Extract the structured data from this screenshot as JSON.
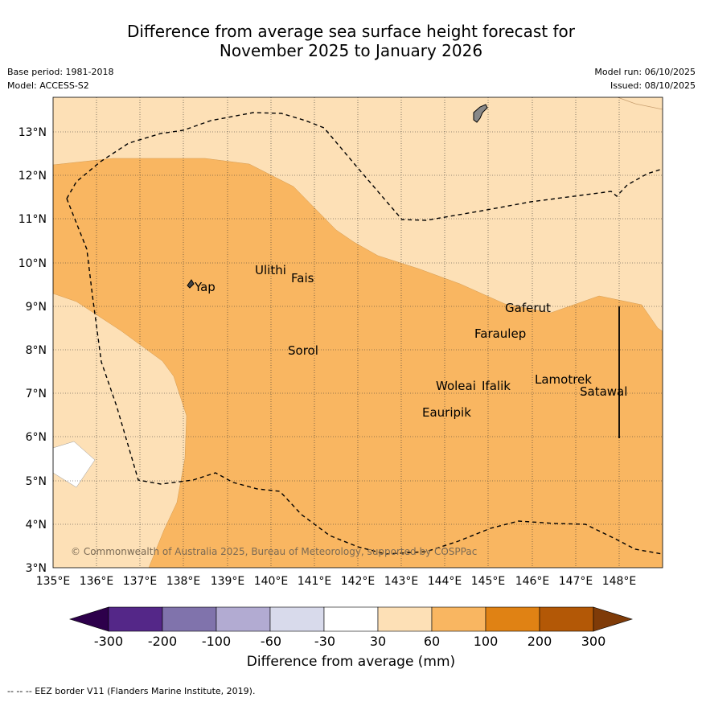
{
  "header": {
    "title_line1": "Difference from average sea surface height forecast for",
    "title_line2": "November 2025 to January 2026",
    "base_period": "Base period: 1981-2018",
    "model": "Model: ACCESS-S2",
    "model_run": "Model run: 06/10/2025",
    "issued": "Issued: 08/10/2025"
  },
  "map": {
    "lat_labels": [
      "13°N",
      "12°N",
      "11°N",
      "10°N",
      "9°N",
      "8°N",
      "7°N",
      "6°N",
      "5°N",
      "4°N",
      "3°N"
    ],
    "lon_labels": [
      "135°E",
      "136°E",
      "137°E",
      "138°E",
      "139°E",
      "140°E",
      "141°E",
      "142°E",
      "143°E",
      "144°E",
      "145°E",
      "146°E",
      "147°E",
      "148°E"
    ],
    "islands": [
      "Yap",
      "Ulithi",
      "Fais",
      "Sorol",
      "Gaferut",
      "Faraulep",
      "Woleai",
      "Ifalik",
      "Lamotrek",
      "Satawal",
      "Eauripik"
    ],
    "copyright": "© Commonwealth of Australia 2025, Bureau of Meteorology, supported by COSPPac",
    "colors": {
      "band_30_60": "#fde0b6",
      "band_60_100": "#f9b661",
      "land": "#888888"
    }
  },
  "colorbar": {
    "title": "Difference from average (mm)",
    "ticks": [
      "-300",
      "-200",
      "-100",
      "-60",
      "-30",
      "30",
      "60",
      "100",
      "200",
      "300"
    ],
    "colors": [
      "#2d004b",
      "#542788",
      "#8073ac",
      "#b2abd2",
      "#d8daeb",
      "#ffffff",
      "#fde0b6",
      "#f9b661",
      "#e08214",
      "#b35806",
      "#7f3b08"
    ]
  },
  "footer": {
    "legend": "--  --  -- EEZ border V11 (Flanders Marine Institute, 2019)."
  }
}
